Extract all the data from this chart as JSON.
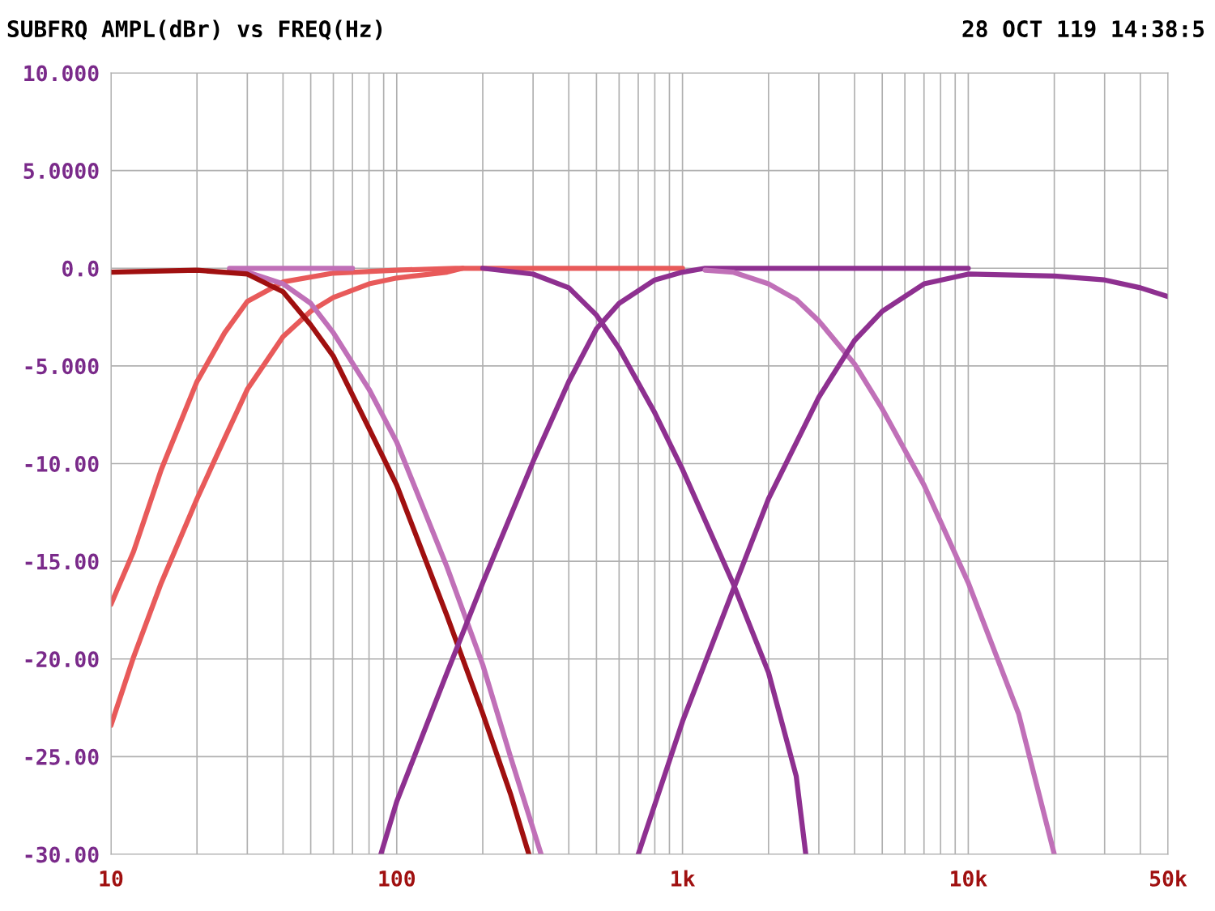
{
  "chart_data": {
    "type": "line",
    "title": "SUBFRQ AMPL(dBr) vs FREQ(Hz)",
    "annotations": [
      "28 OCT 119 14:38:5"
    ],
    "log": "x",
    "grid": true,
    "legend": false,
    "marker": "none",
    "line_style": "solid",
    "xlim": [
      10,
      50000
    ],
    "ylim": [
      -30,
      10
    ],
    "xticks": [
      10,
      {
        "value": 20,
        "label": null
      },
      {
        "value": 30,
        "label": null
      },
      {
        "value": 40,
        "label": null
      },
      {
        "value": 50,
        "label": null
      },
      {
        "value": 60,
        "label": null
      },
      {
        "value": 70,
        "label": null
      },
      {
        "value": 80,
        "label": null
      },
      {
        "value": 90,
        "label": null
      },
      100,
      {
        "value": 200,
        "label": null
      },
      {
        "value": 300,
        "label": null
      },
      {
        "value": 400,
        "label": null
      },
      {
        "value": 500,
        "label": null
      },
      {
        "value": 600,
        "label": null
      },
      {
        "value": 700,
        "label": null
      },
      {
        "value": 800,
        "label": null
      },
      {
        "value": 900,
        "label": null
      },
      {
        "value": 1000,
        "label": "1k"
      },
      {
        "value": 2000,
        "label": null
      },
      {
        "value": 3000,
        "label": null
      },
      {
        "value": 4000,
        "label": null
      },
      {
        "value": 5000,
        "label": null
      },
      {
        "value": 6000,
        "label": null
      },
      {
        "value": 7000,
        "label": null
      },
      {
        "value": 8000,
        "label": null
      },
      {
        "value": 9000,
        "label": null
      },
      {
        "value": 10000,
        "label": "10k"
      },
      {
        "value": 20000,
        "label": null
      },
      {
        "value": 30000,
        "label": null
      },
      {
        "value": 40000,
        "label": null
      },
      {
        "value": 50000,
        "label": "50k"
      }
    ],
    "yticks": [
      {
        "value": 10,
        "label": "10.000"
      },
      {
        "value": 5,
        "label": "5.0000"
      },
      {
        "value": 0,
        "label": "0.0"
      },
      {
        "value": -5,
        "label": "-5.000"
      },
      {
        "value": -10,
        "label": "-10.00"
      },
      {
        "value": -15,
        "label": "-15.00"
      },
      {
        "value": -20,
        "label": "-20.00"
      },
      {
        "value": -25,
        "label": "-25.00"
      },
      {
        "value": -30,
        "label": "-30.00"
      }
    ],
    "series": [
      {
        "color": "#e85a5a",
        "x": [
          10,
          12,
          15,
          20,
          25,
          30,
          40,
          60,
          100,
          160,
          1000
        ],
        "values": [
          -17.2,
          -14.5,
          -10.3,
          -5.8,
          -3.3,
          -1.7,
          -0.7,
          -0.25,
          -0.1,
          0,
          0
        ]
      },
      {
        "color": "#e85a5a",
        "x": [
          10,
          12,
          15,
          20,
          25,
          30,
          40,
          50,
          60,
          80,
          100,
          150,
          170
        ],
        "values": [
          -23.4,
          -19.9,
          -16.1,
          -11.8,
          -8.7,
          -6.2,
          -3.5,
          -2.2,
          -1.5,
          -0.8,
          -0.5,
          -0.2,
          0
        ]
      },
      {
        "color": "#c070b8",
        "x": [
          26,
          70
        ],
        "values": [
          0,
          0
        ]
      },
      {
        "color": "#c070b8",
        "x": [
          26,
          30,
          40,
          50,
          60,
          80,
          100,
          150,
          200,
          250,
          320
        ],
        "values": [
          -0.1,
          -0.2,
          -0.8,
          -1.8,
          -3.3,
          -6.2,
          -8.9,
          -15.3,
          -20.3,
          -25,
          -30
        ]
      },
      {
        "color": "#a01010",
        "x": [
          10,
          20,
          30,
          40,
          50,
          60,
          80,
          100,
          150,
          200,
          250,
          290
        ],
        "values": [
          -0.2,
          -0.1,
          -0.3,
          -1.2,
          -2.9,
          -4.5,
          -8.2,
          -11.1,
          -17.8,
          -22.8,
          -26.9,
          -30
        ]
      },
      {
        "color": "#8e3090",
        "x": [
          200,
          300,
          400,
          500,
          600,
          800,
          1000,
          1500,
          2000,
          2500,
          2700
        ],
        "values": [
          0,
          -0.3,
          -1,
          -2.4,
          -4.1,
          -7.4,
          -10.3,
          -16.1,
          -20.7,
          -26,
          -30
        ]
      },
      {
        "color": "#8e3090",
        "x": [
          88,
          100,
          150,
          200,
          300,
          400,
          500,
          600,
          800,
          1000,
          1200,
          10000
        ],
        "values": [
          -30,
          -27.3,
          -20.7,
          -16.1,
          -9.9,
          -5.8,
          -3.1,
          -1.8,
          -0.6,
          -0.2,
          0,
          0
        ]
      },
      {
        "color": "#c070b8",
        "x": [
          1200,
          1500,
          2000,
          2500,
          3000,
          4000,
          5000,
          7000,
          10000,
          15000,
          20000
        ],
        "values": [
          -0.1,
          -0.2,
          -0.8,
          -1.6,
          -2.7,
          -4.9,
          -7.2,
          -11.1,
          -16.1,
          -22.8,
          -30
        ]
      },
      {
        "color": "#8e3090",
        "x": [
          700,
          1000,
          1500,
          2000,
          3000,
          4000,
          5000,
          7000,
          10000,
          20000,
          30000,
          40000,
          50000
        ],
        "values": [
          -30,
          -23.2,
          -16.5,
          -11.8,
          -6.6,
          -3.7,
          -2.2,
          -0.8,
          -0.3,
          -0.4,
          -0.6,
          -1.0,
          -1.45
        ]
      }
    ]
  }
}
